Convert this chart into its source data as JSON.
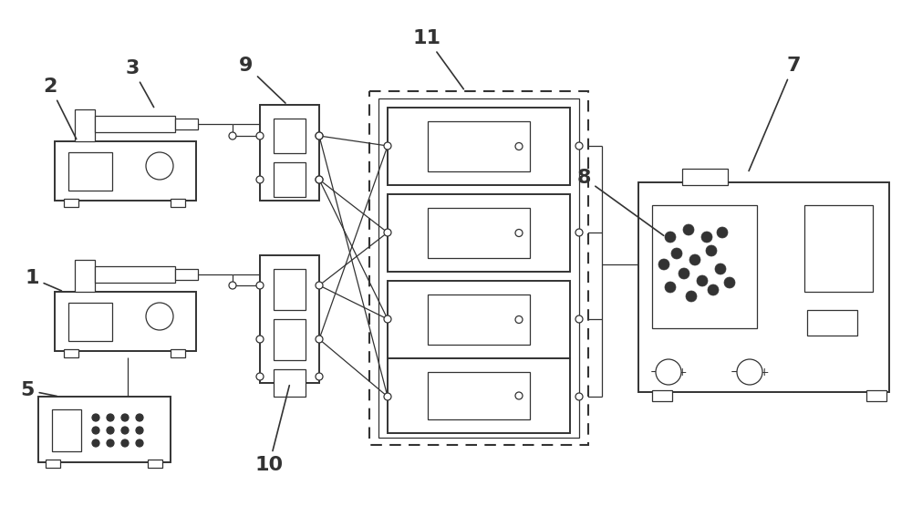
{
  "bg_color": "#ffffff",
  "line_color": "#333333",
  "lw_main": 1.4,
  "lw_thin": 0.9,
  "lw_dash": 1.4,
  "fig_w": 10.0,
  "fig_h": 5.78
}
